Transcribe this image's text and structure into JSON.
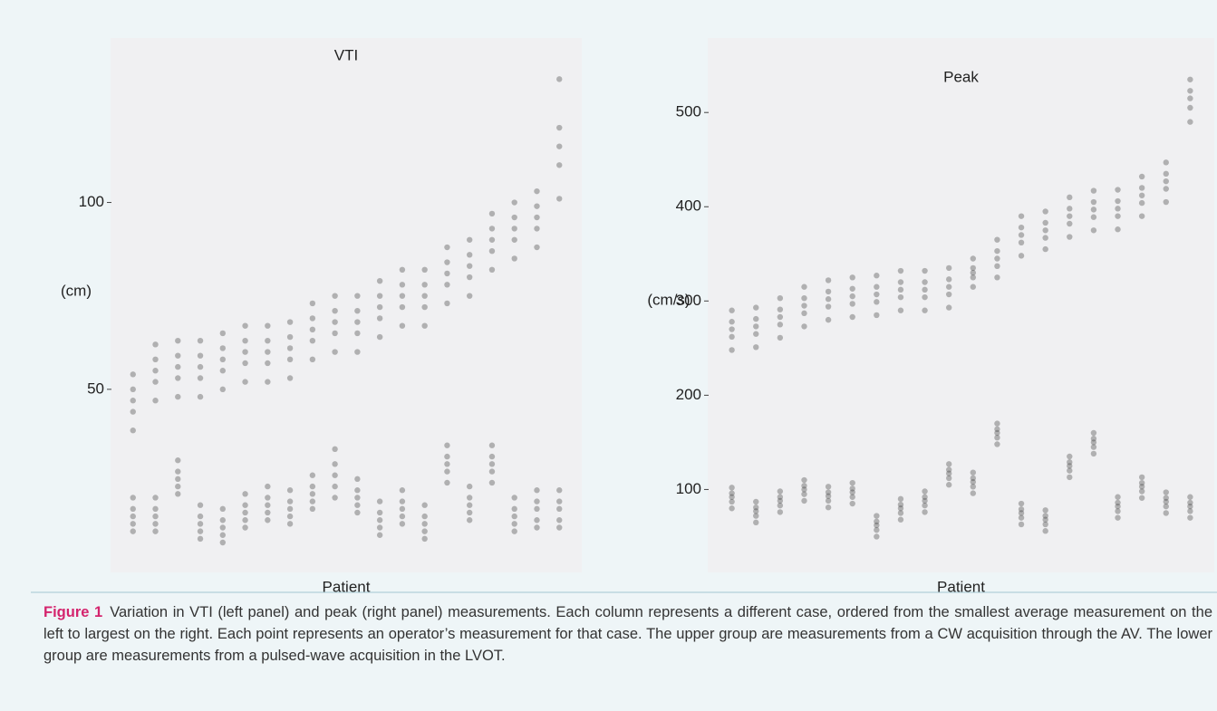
{
  "chart_data": [
    {
      "type": "scatter",
      "title": "VTI",
      "xlabel": "Patient",
      "ylabel": "(cm)",
      "xlim": [
        0,
        21
      ],
      "ylim": [
        1,
        144
      ],
      "yticks": [
        50,
        100
      ],
      "series": [
        {
          "color": "#3a3a3a",
          "x": [
            1,
            1,
            1,
            1,
            1,
            2,
            2,
            2,
            2,
            2,
            3,
            3,
            3,
            3,
            3,
            4,
            4,
            4,
            4,
            4,
            5,
            5,
            5,
            5,
            5,
            6,
            6,
            6,
            6,
            6,
            7,
            7,
            7,
            7,
            7,
            8,
            8,
            8,
            8,
            8,
            9,
            9,
            9,
            9,
            9,
            10,
            10,
            10,
            10,
            10,
            11,
            11,
            11,
            11,
            11,
            12,
            12,
            12,
            12,
            12,
            13,
            13,
            13,
            13,
            13,
            14,
            14,
            14,
            14,
            14,
            15,
            15,
            15,
            15,
            15,
            16,
            16,
            16,
            16,
            16,
            17,
            17,
            17,
            17,
            17,
            18,
            18,
            18,
            18,
            18,
            19,
            19,
            19,
            19,
            19,
            20,
            20,
            20,
            20,
            20
          ],
          "values": [
            39,
            44,
            47,
            50,
            54,
            47,
            52,
            55,
            58,
            62,
            48,
            53,
            56,
            59,
            63,
            48,
            53,
            56,
            59,
            63,
            50,
            55,
            58,
            61,
            65,
            52,
            57,
            60,
            63,
            67,
            52,
            57,
            60,
            63,
            67,
            53,
            58,
            61,
            64,
            68,
            58,
            63,
            66,
            69,
            73,
            60,
            65,
            68,
            71,
            75,
            60,
            65,
            68,
            71,
            75,
            64,
            69,
            72,
            75,
            79,
            67,
            72,
            75,
            78,
            82,
            67,
            72,
            75,
            78,
            82,
            73,
            78,
            81,
            84,
            88,
            75,
            80,
            83,
            86,
            90,
            82,
            87,
            90,
            93,
            97,
            85,
            90,
            93,
            96,
            100,
            88,
            93,
            96,
            99,
            103,
            101,
            110,
            115,
            120,
            133
          ]
        },
        {
          "color": "#3a3a3a",
          "x": [
            1,
            1,
            1,
            1,
            1,
            2,
            2,
            2,
            2,
            2,
            3,
            3,
            3,
            3,
            3,
            4,
            4,
            4,
            4,
            4,
            5,
            5,
            5,
            5,
            5,
            6,
            6,
            6,
            6,
            6,
            7,
            7,
            7,
            7,
            7,
            8,
            8,
            8,
            8,
            8,
            9,
            9,
            9,
            9,
            9,
            10,
            10,
            10,
            10,
            10,
            11,
            11,
            11,
            11,
            11,
            12,
            12,
            12,
            12,
            12,
            13,
            13,
            13,
            13,
            13,
            14,
            14,
            14,
            14,
            14,
            15,
            15,
            15,
            15,
            15,
            16,
            16,
            16,
            16,
            16,
            17,
            17,
            17,
            17,
            17,
            18,
            18,
            18,
            18,
            18,
            19,
            19,
            19,
            19,
            19,
            20,
            20,
            20,
            20,
            20
          ],
          "values": [
            12,
            14,
            16,
            18,
            21,
            12,
            14,
            16,
            18,
            21,
            22,
            24,
            26,
            28,
            31,
            10,
            12,
            14,
            16,
            19,
            9,
            11,
            13,
            15,
            18,
            13,
            15,
            17,
            19,
            22,
            15,
            17,
            19,
            21,
            24,
            14,
            16,
            18,
            20,
            23,
            18,
            20,
            22,
            24,
            27,
            21,
            24,
            27,
            30,
            34,
            17,
            19,
            21,
            23,
            26,
            11,
            13,
            15,
            17,
            20,
            14,
            16,
            18,
            20,
            23,
            10,
            12,
            14,
            16,
            19,
            25,
            28,
            30,
            32,
            35,
            15,
            17,
            19,
            21,
            24,
            25,
            28,
            30,
            32,
            35,
            12,
            14,
            16,
            18,
            21,
            13,
            15,
            18,
            20,
            23,
            13,
            15,
            18,
            20,
            23
          ]
        }
      ]
    },
    {
      "type": "scatter",
      "title": "Peak",
      "xlabel": "Patient",
      "ylabel": "(cm/s)",
      "xlim": [
        0,
        21
      ],
      "ylim": [
        12,
        579
      ],
      "yticks": [
        100,
        200,
        300,
        400,
        500
      ],
      "series": [
        {
          "color": "#3a3a3a",
          "x": [
            1,
            1,
            1,
            1,
            1,
            2,
            2,
            2,
            2,
            2,
            3,
            3,
            3,
            3,
            3,
            4,
            4,
            4,
            4,
            4,
            5,
            5,
            5,
            5,
            5,
            6,
            6,
            6,
            6,
            6,
            7,
            7,
            7,
            7,
            7,
            8,
            8,
            8,
            8,
            8,
            9,
            9,
            9,
            9,
            9,
            10,
            10,
            10,
            10,
            10,
            11,
            11,
            11,
            11,
            11,
            12,
            12,
            12,
            12,
            12,
            13,
            13,
            13,
            13,
            13,
            14,
            14,
            14,
            14,
            14,
            15,
            15,
            15,
            15,
            15,
            16,
            16,
            16,
            16,
            16,
            17,
            17,
            17,
            17,
            17,
            18,
            18,
            18,
            18,
            18,
            19,
            19,
            19,
            19,
            19,
            20,
            20,
            20,
            20,
            20
          ],
          "values": [
            248,
            262,
            270,
            278,
            290,
            251,
            265,
            273,
            281,
            293,
            261,
            275,
            283,
            291,
            303,
            273,
            287,
            295,
            303,
            315,
            280,
            294,
            302,
            310,
            322,
            283,
            297,
            305,
            313,
            325,
            285,
            299,
            307,
            315,
            327,
            290,
            304,
            312,
            320,
            332,
            290,
            304,
            312,
            320,
            332,
            293,
            307,
            315,
            323,
            335,
            315,
            325,
            330,
            335,
            345,
            325,
            337,
            345,
            353,
            365,
            348,
            362,
            370,
            378,
            390,
            355,
            367,
            375,
            383,
            395,
            368,
            382,
            390,
            398,
            410,
            375,
            389,
            397,
            405,
            417,
            376,
            390,
            398,
            406,
            418,
            390,
            404,
            412,
            420,
            432,
            405,
            419,
            427,
            435,
            447,
            490,
            505,
            515,
            523,
            535
          ]
        },
        {
          "color": "#3a3a3a",
          "x": [
            1,
            1,
            1,
            1,
            1,
            2,
            2,
            2,
            2,
            2,
            3,
            3,
            3,
            3,
            3,
            4,
            4,
            4,
            4,
            4,
            5,
            5,
            5,
            5,
            5,
            6,
            6,
            6,
            6,
            6,
            7,
            7,
            7,
            7,
            7,
            8,
            8,
            8,
            8,
            8,
            9,
            9,
            9,
            9,
            9,
            10,
            10,
            10,
            10,
            10,
            11,
            11,
            11,
            11,
            11,
            12,
            12,
            12,
            12,
            12,
            13,
            13,
            13,
            13,
            13,
            14,
            14,
            14,
            14,
            14,
            15,
            15,
            15,
            15,
            15,
            16,
            16,
            16,
            16,
            16,
            17,
            17,
            17,
            17,
            17,
            18,
            18,
            18,
            18,
            18,
            19,
            19,
            19,
            19,
            19,
            20,
            20,
            20,
            20,
            20
          ],
          "values": [
            80,
            87,
            92,
            96,
            102,
            65,
            72,
            77,
            81,
            87,
            76,
            83,
            88,
            92,
            98,
            88,
            95,
            100,
            104,
            110,
            81,
            88,
            93,
            97,
            103,
            85,
            92,
            97,
            101,
            107,
            50,
            57,
            62,
            66,
            72,
            68,
            75,
            80,
            84,
            90,
            76,
            83,
            88,
            92,
            98,
            105,
            112,
            117,
            121,
            127,
            96,
            103,
            108,
            112,
            118,
            148,
            155,
            160,
            164,
            170,
            63,
            70,
            75,
            79,
            85,
            56,
            63,
            68,
            72,
            78,
            113,
            120,
            125,
            129,
            135,
            138,
            145,
            150,
            154,
            160,
            70,
            77,
            82,
            86,
            92,
            91,
            98,
            103,
            107,
            113,
            75,
            82,
            87,
            91,
            97,
            70,
            77,
            82,
            86,
            92
          ]
        }
      ]
    }
  ],
  "figure": {
    "label": "Figure 1",
    "text": "Variation in VTI (left panel) and peak (right panel) measurements. Each column represents a different case, ordered from the smallest average measurement on the left to largest on the right. Each point represents an operator’s measurement for that case. The upper group are measurements from a CW acquisition through the AV. The lower group are measurements from a pulsed-wave acquisition in the LVOT."
  }
}
